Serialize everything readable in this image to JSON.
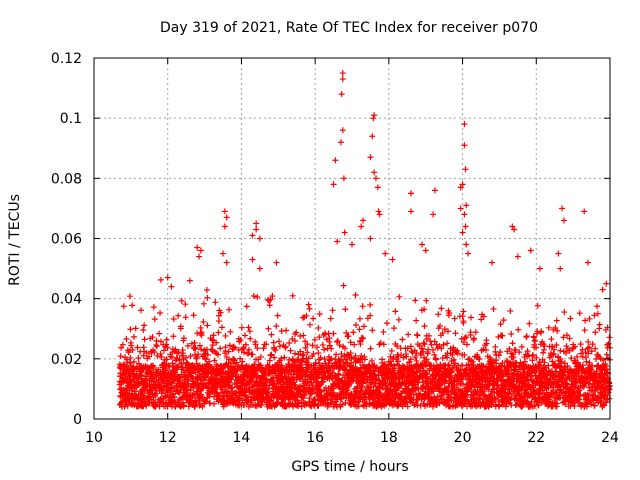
{
  "chart_data": {
    "type": "scatter",
    "title": "Day 319 of 2021, Rate Of TEC Index for receiver p070",
    "xlabel": "GPS time / hours",
    "ylabel": "ROTI / TECUs",
    "xlim": [
      10,
      24
    ],
    "ylim": [
      0,
      0.12
    ],
    "xticks": [
      "10",
      "12",
      "14",
      "16",
      "18",
      "20",
      "22",
      "24"
    ],
    "yticks": [
      "0",
      "0.02",
      "0.04",
      "0.06",
      "0.08",
      "0.1",
      "0.12"
    ],
    "grid": true,
    "marker": "+",
    "color": "#ff0000",
    "x_data_range": [
      10.7,
      24.0
    ],
    "series": [
      {
        "values": [
          [
            16.75,
            0.115
          ],
          [
            16.75,
            0.113
          ],
          [
            16.72,
            0.108
          ],
          [
            16.75,
            0.096
          ],
          [
            16.7,
            0.092
          ],
          [
            17.6,
            0.101
          ],
          [
            17.58,
            0.1
          ],
          [
            17.55,
            0.094
          ],
          [
            17.5,
            0.087
          ],
          [
            17.6,
            0.082
          ],
          [
            16.55,
            0.086
          ],
          [
            16.5,
            0.078
          ],
          [
            16.78,
            0.08
          ],
          [
            17.65,
            0.08
          ],
          [
            17.7,
            0.077
          ],
          [
            17.72,
            0.069
          ],
          [
            17.75,
            0.068
          ],
          [
            17.3,
            0.066
          ],
          [
            17.25,
            0.064
          ],
          [
            20.05,
            0.098
          ],
          [
            20.05,
            0.091
          ],
          [
            20.08,
            0.083
          ],
          [
            20.0,
            0.078
          ],
          [
            19.95,
            0.077
          ],
          [
            20.1,
            0.071
          ],
          [
            19.95,
            0.07
          ],
          [
            20.05,
            0.068
          ],
          [
            20.08,
            0.064
          ],
          [
            20.0,
            0.062
          ],
          [
            18.6,
            0.075
          ],
          [
            19.25,
            0.076
          ],
          [
            19.2,
            0.068
          ],
          [
            18.6,
            0.069
          ],
          [
            22.7,
            0.07
          ],
          [
            23.3,
            0.069
          ],
          [
            22.75,
            0.066
          ],
          [
            13.55,
            0.069
          ],
          [
            13.6,
            0.067
          ],
          [
            13.55,
            0.064
          ],
          [
            14.4,
            0.065
          ],
          [
            14.4,
            0.063
          ],
          [
            14.3,
            0.061
          ],
          [
            14.5,
            0.06
          ],
          [
            21.35,
            0.064
          ],
          [
            21.4,
            0.063
          ],
          [
            12.8,
            0.057
          ],
          [
            12.9,
            0.056
          ],
          [
            12.85,
            0.054
          ],
          [
            13.5,
            0.055
          ],
          [
            13.6,
            0.052
          ],
          [
            14.95,
            0.052
          ],
          [
            14.3,
            0.053
          ],
          [
            14.5,
            0.05
          ],
          [
            16.6,
            0.059
          ],
          [
            16.8,
            0.062
          ],
          [
            17.0,
            0.058
          ],
          [
            17.5,
            0.06
          ],
          [
            17.9,
            0.055
          ],
          [
            18.1,
            0.053
          ],
          [
            18.9,
            0.058
          ],
          [
            19.0,
            0.056
          ],
          [
            20.1,
            0.058
          ],
          [
            20.15,
            0.055
          ],
          [
            20.8,
            0.052
          ],
          [
            21.5,
            0.054
          ],
          [
            21.85,
            0.056
          ],
          [
            22.1,
            0.05
          ],
          [
            22.6,
            0.055
          ],
          [
            22.65,
            0.05
          ],
          [
            23.4,
            0.052
          ],
          [
            23.9,
            0.045
          ],
          [
            23.8,
            0.043
          ],
          [
            12.0,
            0.047
          ],
          [
            12.1,
            0.044
          ],
          [
            12.6,
            0.046
          ]
        ]
      }
    ]
  }
}
